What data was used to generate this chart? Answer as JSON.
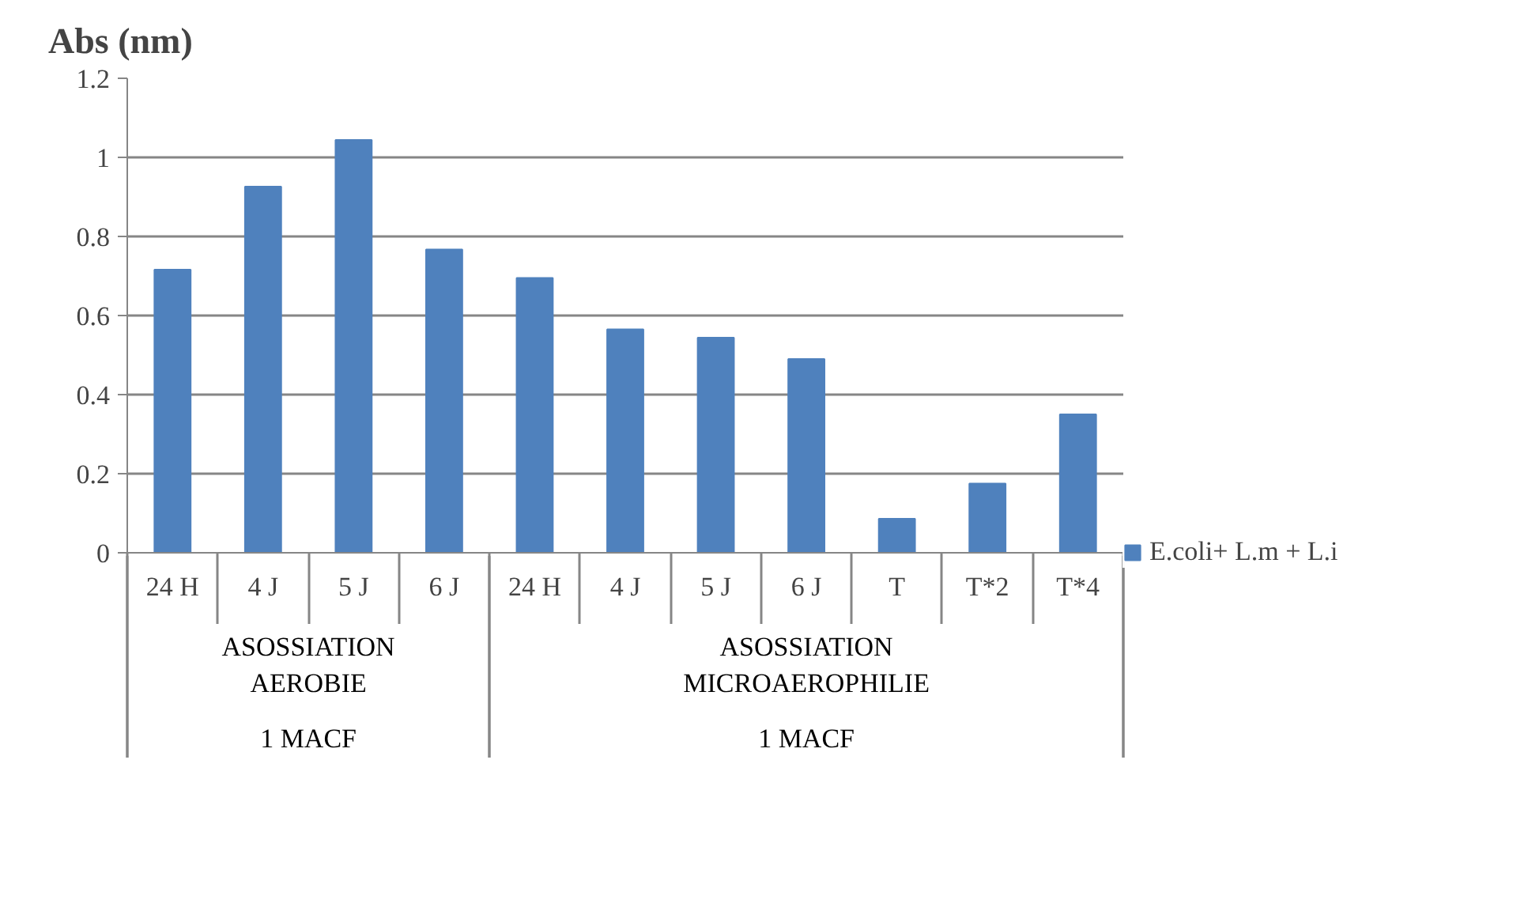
{
  "chart_data": {
    "type": "bar",
    "ylabel": "Abs (nm)",
    "categories": [
      "24 H",
      "4 J",
      "5 J",
      "6 J",
      "24 H",
      "4 J",
      "5 J",
      "6 J",
      "T",
      "T*2",
      "T*4"
    ],
    "series": [
      {
        "name": "E.coli+ L.m + L.i",
        "color": "#4f81bd",
        "values": [
          0.716,
          0.926,
          1.044,
          0.767,
          0.695,
          0.565,
          0.544,
          0.49,
          0.086,
          0.175,
          0.35
        ]
      }
    ],
    "annotations": [
      "ASOSSIATION AEROBIE",
      "ASOSSIATION MICROAEROPHILIE",
      "1 MACF",
      "1 MACF"
    ],
    "ylim": [
      0,
      1.2
    ],
    "yticks": [
      0,
      0.2,
      0.4,
      0.6,
      0.8,
      1,
      1.2
    ],
    "grid": "y",
    "legend": "right"
  }
}
